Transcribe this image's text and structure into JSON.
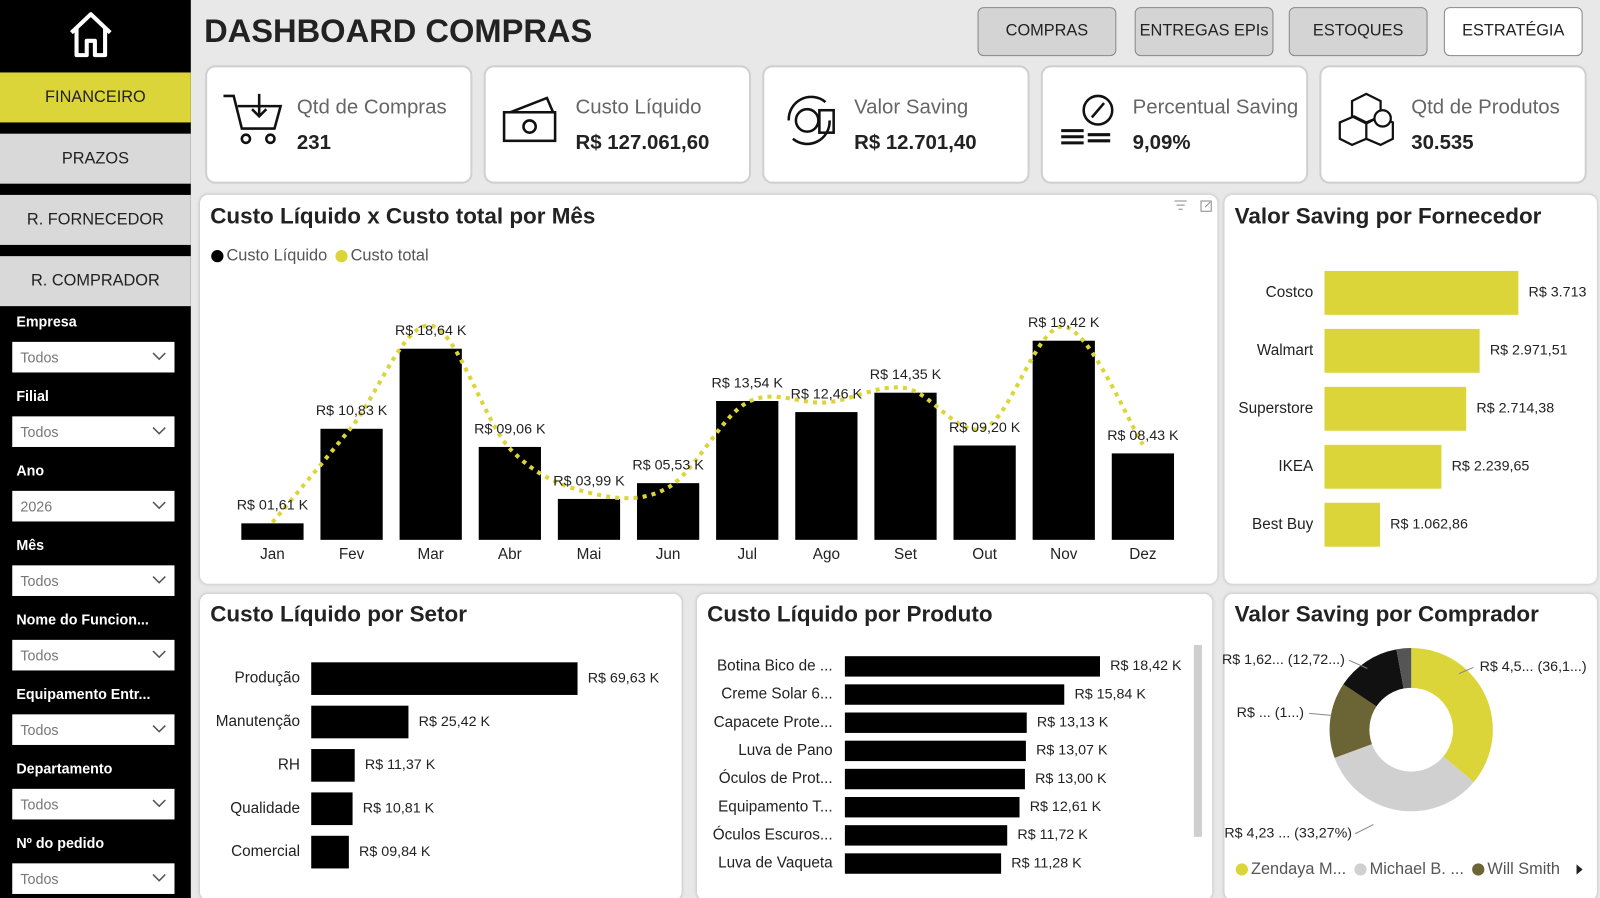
{
  "sidebar": {
    "nav": [
      "FINANCEIRO",
      "PRAZOS",
      "R. FORNECEDOR",
      "R. COMPRADOR"
    ],
    "filters": [
      {
        "label": "Empresa",
        "value": "Todos"
      },
      {
        "label": "Filial",
        "value": "Todos"
      },
      {
        "label": "Ano",
        "value": "2026"
      },
      {
        "label": "Mês",
        "value": "Todos"
      },
      {
        "label": "Nome do Funcion...",
        "value": "Todos"
      },
      {
        "label": "Equipamento Entr...",
        "value": "Todos"
      },
      {
        "label": "Departamento",
        "value": "Todos"
      },
      {
        "label": "Nº do pedido",
        "value": "Todos"
      }
    ]
  },
  "header": {
    "title": "DASHBOARD COMPRAS",
    "tabs": [
      "COMPRAS",
      "ENTREGAS EPIs",
      "ESTOQUES",
      "ESTRATÉGIA"
    ]
  },
  "kpis": [
    {
      "label": "Qtd de Compras",
      "value": "231"
    },
    {
      "label": "Custo Líquido",
      "value": "R$ 127.061,60"
    },
    {
      "label": "Valor Saving",
      "value": "R$ 12.701,40"
    },
    {
      "label": "Percentual Saving",
      "value": "9,09%"
    },
    {
      "label": "Qtd de Produtos",
      "value": "30.535"
    }
  ],
  "chart_data": [
    {
      "type": "combo",
      "title": "Custo Líquido x Custo total por Mês",
      "legend": "top-left",
      "categories": [
        "Jan",
        "Fev",
        "Mar",
        "Abr",
        "Mai",
        "Jun",
        "Jul",
        "Ago",
        "Set",
        "Out",
        "Nov",
        "Dez"
      ],
      "series": [
        {
          "name": "Custo Líquido",
          "type": "bar",
          "color": "#000000",
          "values": [
            1.61,
            10.83,
            18.64,
            9.06,
            3.99,
            5.53,
            13.54,
            12.46,
            14.35,
            9.2,
            19.42,
            8.43
          ],
          "value_labels": [
            "R$ 01,61 K",
            "R$ 10,83 K",
            "R$ 18,64 K",
            "R$ 09,06 K",
            "R$ 03,99 K",
            "R$ 05,53 K",
            "R$ 13,54 K",
            "R$ 12,46 K",
            "R$ 14,35 K",
            "R$ 09,20 K",
            "R$ 19,42 K",
            "R$ 08,43 K"
          ]
        },
        {
          "name": "Custo total",
          "type": "line",
          "color": "#dcd53a",
          "values": [
            1.7,
            11.0,
            20.9,
            8.9,
            4.6,
            5.1,
            13.4,
            13.4,
            14.8,
            10.9,
            20.8,
            9.3
          ]
        }
      ]
    },
    {
      "type": "hbar",
      "title": "Valor Saving por Fornecedor",
      "color": "#dcd53a",
      "categories": [
        "Costco",
        "Walmart",
        "Superstore",
        "IKEA",
        "Best Buy"
      ],
      "values": [
        3713,
        2971.51,
        2714.38,
        2239.65,
        1062.86
      ],
      "value_labels": [
        "R$ 3.713",
        "R$ 2.971,51",
        "R$ 2.714,38",
        "R$ 2.239,65",
        "R$ 1.062,86"
      ]
    },
    {
      "type": "hbar",
      "title": "Custo Líquido por Setor",
      "color": "#000000",
      "categories": [
        "Produção",
        "Manutenção",
        "RH",
        "Qualidade",
        "Comercial"
      ],
      "values": [
        69.63,
        25.42,
        11.37,
        10.81,
        9.84
      ],
      "value_labels": [
        "R$ 69,63 K",
        "R$ 25,42 K",
        "R$ 11,37 K",
        "R$ 10,81 K",
        "R$ 09,84 K"
      ]
    },
    {
      "type": "hbar",
      "title": "Custo Líquido por Produto",
      "color": "#000000",
      "categories": [
        "Botina Bico de ...",
        "Creme Solar 6...",
        "Capacete Prote...",
        "Luva de Pano",
        "Óculos de Prot...",
        "Equipamento T...",
        "Óculos Escuros...",
        "Luva de Vaqueta"
      ],
      "values": [
        18.42,
        15.84,
        13.13,
        13.07,
        13.0,
        12.61,
        11.72,
        11.28
      ],
      "value_labels": [
        "R$ 18,42 K",
        "R$ 15,84 K",
        "R$ 13,13 K",
        "R$ 13,07 K",
        "R$ 13,00 K",
        "R$ 12,61 K",
        "R$ 11,72 K",
        "R$ 11,28 K"
      ]
    },
    {
      "type": "donut",
      "title": "Valor Saving por Comprador",
      "categories": [
        "Zendaya M...",
        "Michael B. ...",
        "Will Smith",
        null,
        null
      ],
      "colors": [
        "#dcd53a",
        "#d0d0d0",
        "#6b6535",
        "#111111",
        "#555555"
      ],
      "values": [
        36.1,
        33.27,
        15,
        12.72,
        2.9
      ],
      "value_labels": [
        "R$ 4,5... (36,1...)",
        "R$ 4,23 ... (33,27%)",
        "R$ ... (1...)",
        "R$ 1,62... (12,72...)",
        null
      ]
    }
  ]
}
